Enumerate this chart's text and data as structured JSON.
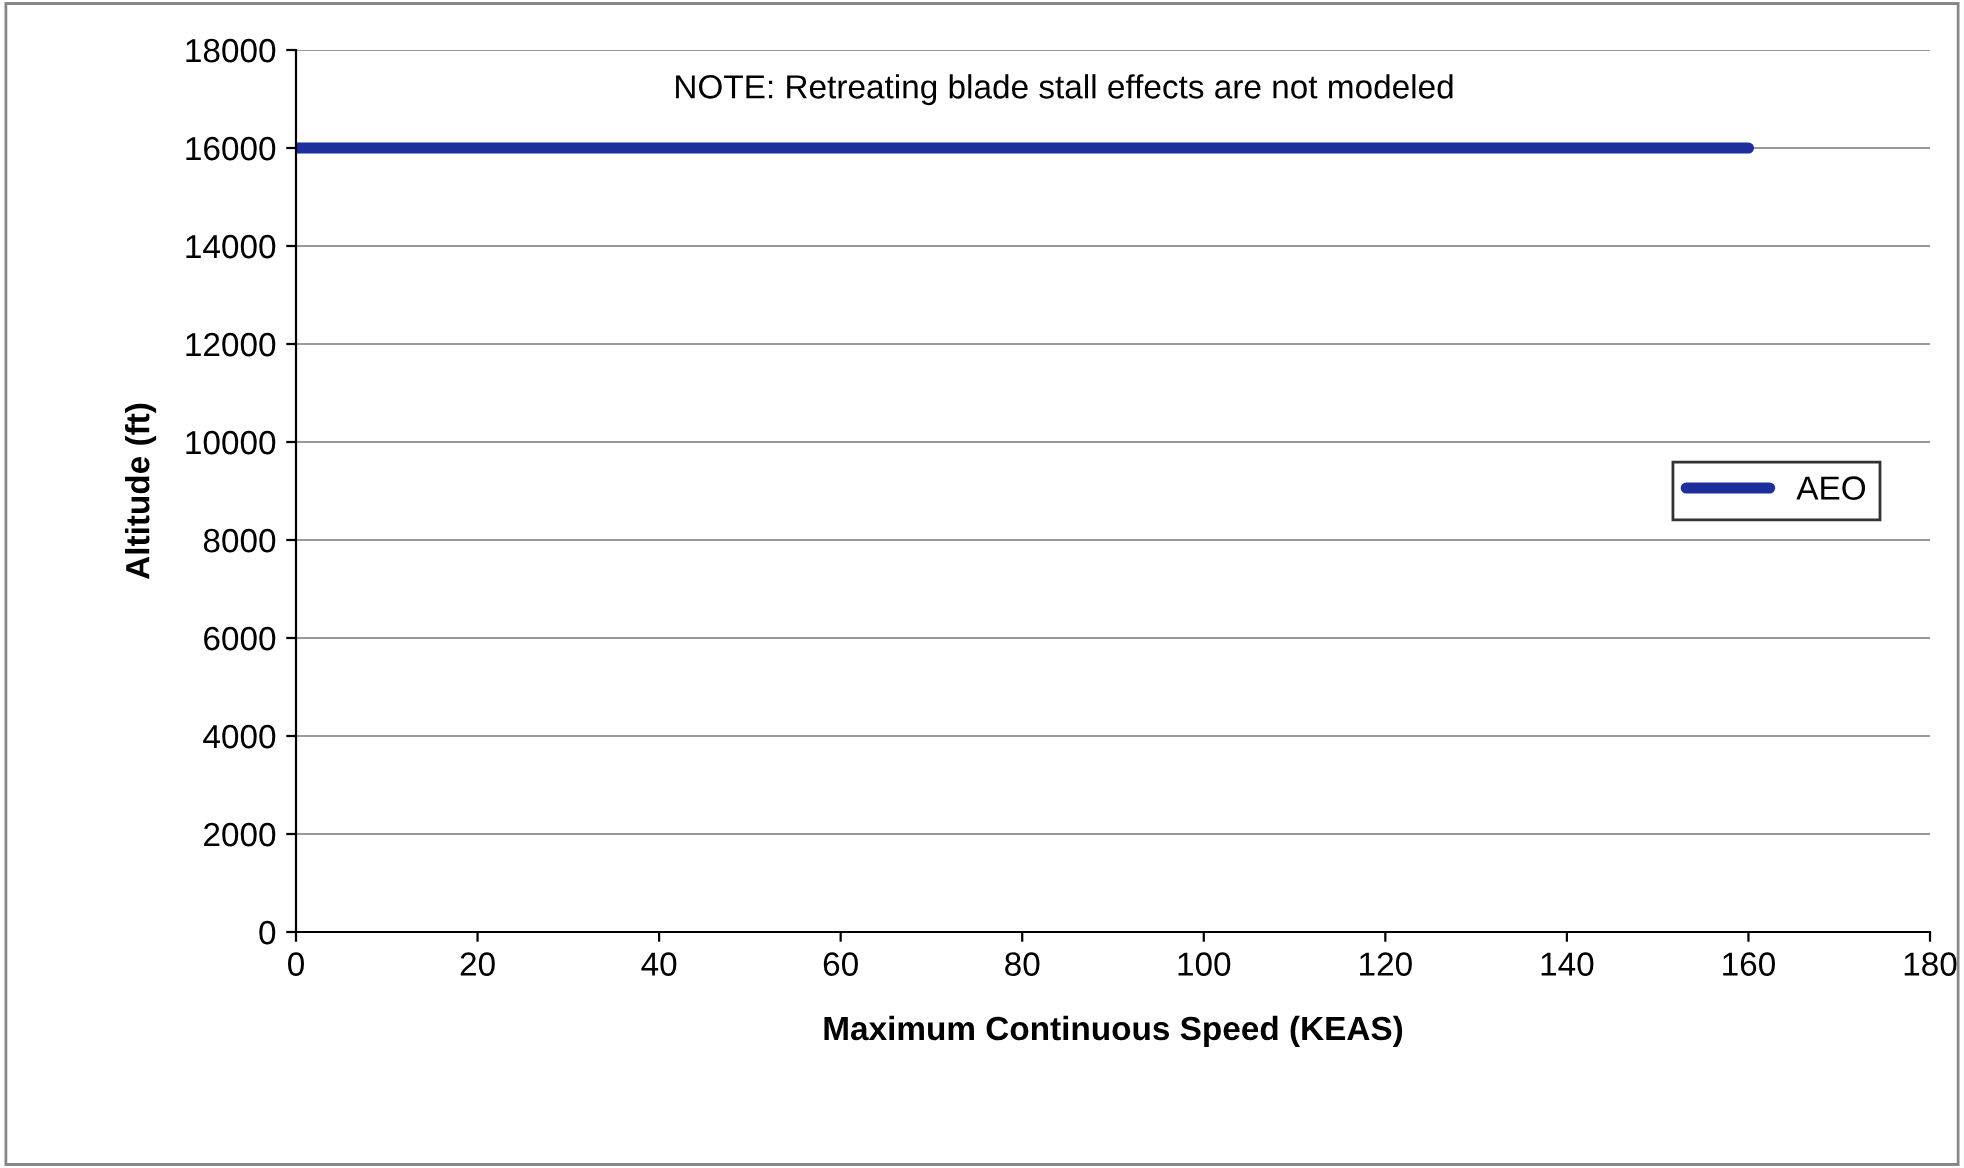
{
  "chart_data": {
    "type": "line",
    "xlabel": "Maximum Continuous Speed (KEAS)",
    "ylabel": "Altitude (ft)",
    "x": [
      0,
      160
    ],
    "series": [
      {
        "name": "AEO",
        "color": "#1c2f9c",
        "values": [
          16000,
          16000
        ]
      }
    ],
    "xlim": [
      0,
      180
    ],
    "xticks": [
      0,
      20,
      40,
      60,
      80,
      100,
      120,
      140,
      160,
      180
    ],
    "ylim": [
      0,
      18000
    ],
    "yticks": [
      0,
      2000,
      4000,
      6000,
      8000,
      10000,
      12000,
      14000,
      16000,
      18000
    ],
    "grid": "y",
    "legend": "right",
    "marker": "none",
    "line_style": "solid",
    "annotations": [
      "NOTE: Retreating blade stall effects are not modeled"
    ]
  }
}
